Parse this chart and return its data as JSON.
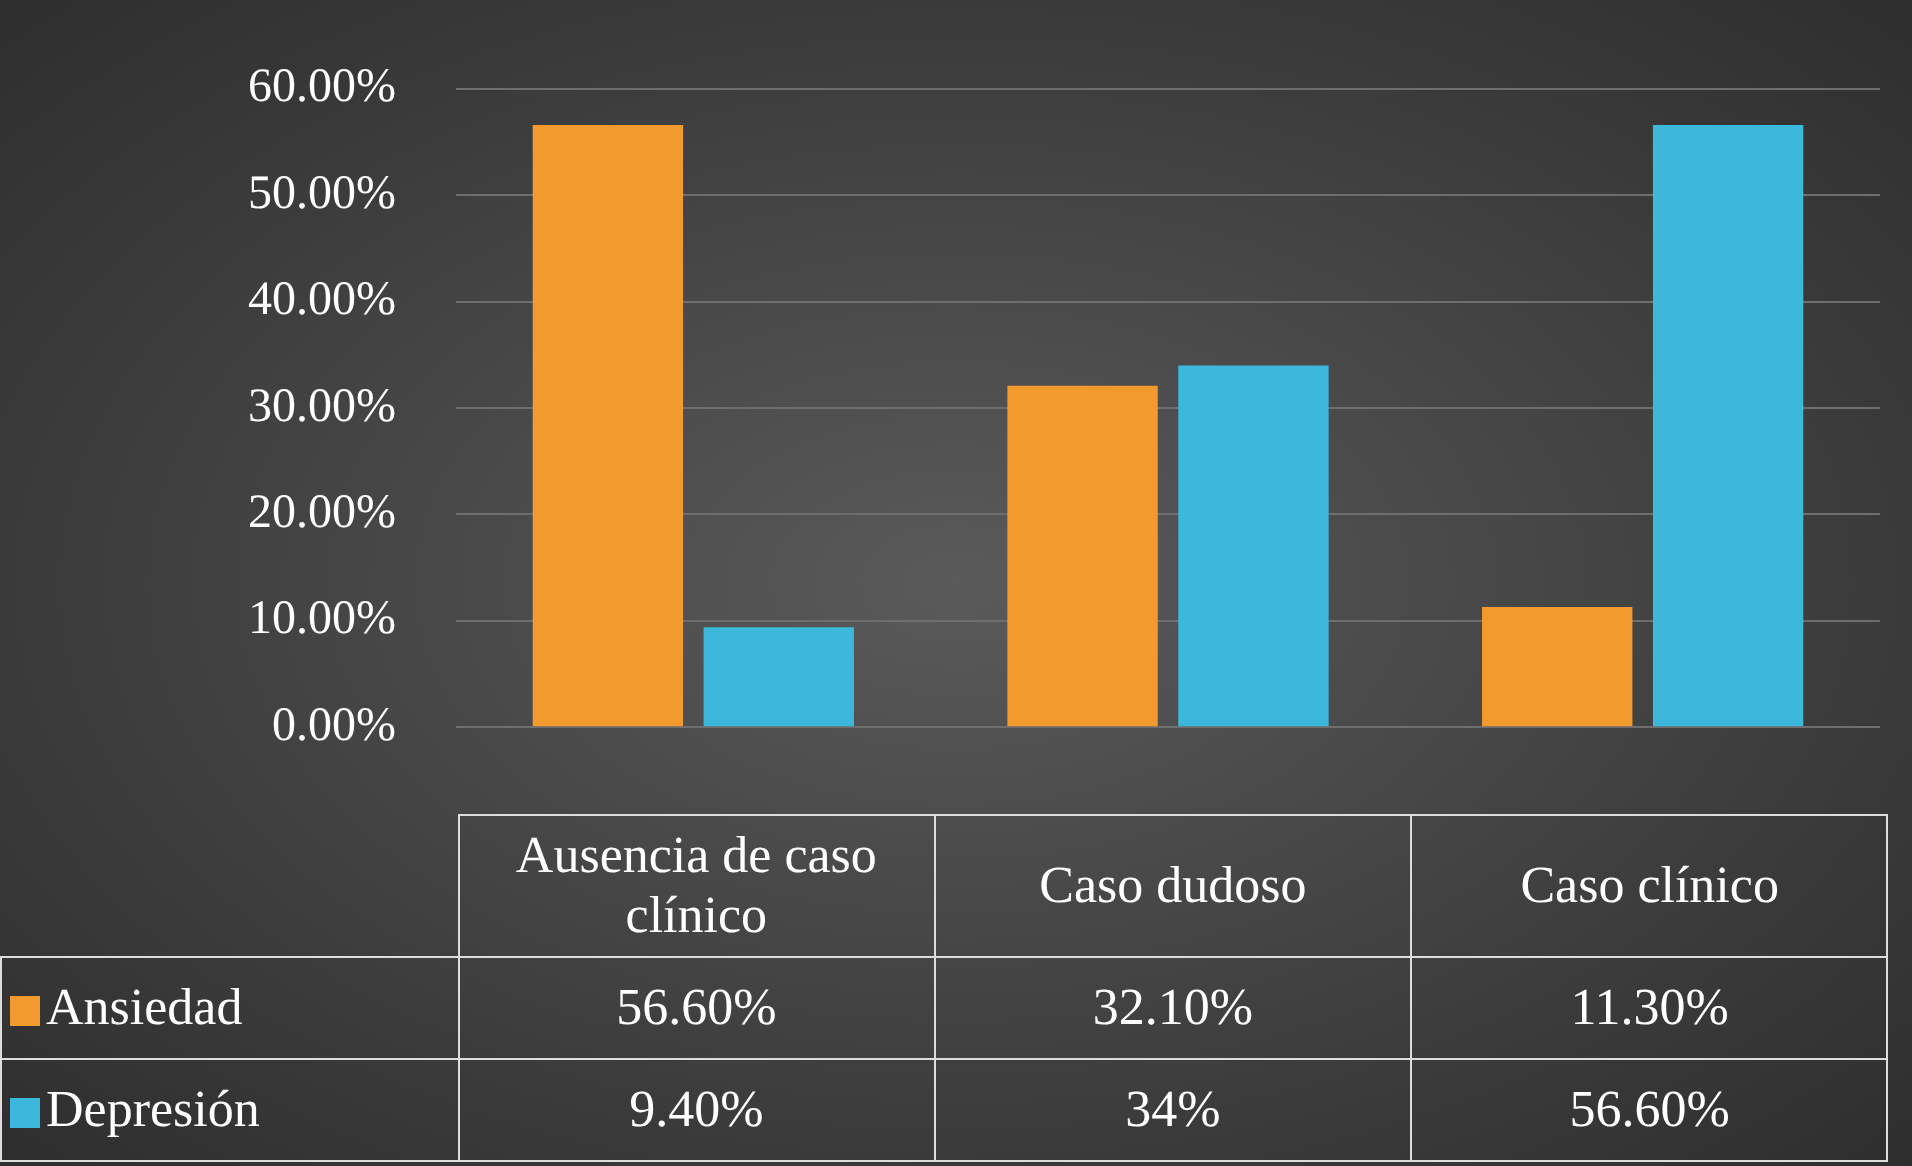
{
  "chart_data": {
    "type": "bar",
    "categories": [
      "Ausencia de caso clínico",
      "Caso dudoso",
      "Caso clínico"
    ],
    "series": [
      {
        "name": "Ansiedad",
        "color": "#f39a2e",
        "values": [
          56.6,
          32.1,
          11.3
        ],
        "value_labels": [
          "56.60%",
          "32.10%",
          "11.30%"
        ]
      },
      {
        "name": "Depresión",
        "color": "#3cb8dc",
        "values": [
          9.4,
          34,
          56.6
        ],
        "value_labels": [
          "9.40%",
          "34%",
          "56.60%"
        ]
      }
    ],
    "ylim": [
      0,
      60
    ],
    "yticks": [
      {
        "value": 0,
        "label": "0.00%"
      },
      {
        "value": 10,
        "label": "10.00%"
      },
      {
        "value": 20,
        "label": "20.00%"
      },
      {
        "value": 30,
        "label": "30.00%"
      },
      {
        "value": 40,
        "label": "40.00%"
      },
      {
        "value": 50,
        "label": "50.00%"
      },
      {
        "value": 60,
        "label": "60.00%"
      }
    ],
    "grid": "y",
    "legend": "bottom"
  }
}
